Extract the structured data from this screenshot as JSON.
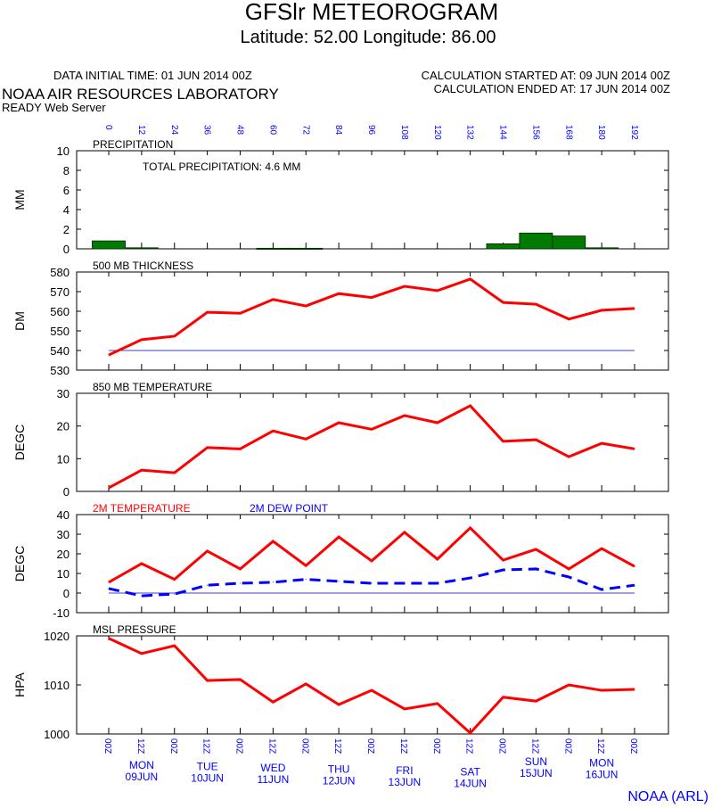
{
  "header": {
    "title": "GFSlr METEOROGRAM",
    "subtitle": "Latitude: 52.00 Longitude:  86.00",
    "initial_time": "DATA INITIAL TIME: 01 JUN 2014 00Z",
    "calc_started": "CALCULATION STARTED AT: 09 JUN 2014 00Z",
    "calc_ended": "CALCULATION ENDED AT: 17 JUN 2014 00Z",
    "org": "NOAA AIR RESOURCES LABORATORY",
    "server": "READY Web Server",
    "footer": "NOAA (ARL)"
  },
  "colors": {
    "accent_blue": "#0000ff",
    "red": "#ff0000",
    "green": "#007a00",
    "ref_line": "#4040c0"
  },
  "chart_data": [
    {
      "type": "bar",
      "title": "PRECIPITATION",
      "annotation": "TOTAL PRECIPITATION:   4.6 MM",
      "ylabel": "MM",
      "ylim": [
        0,
        10
      ],
      "yticks": [
        "0",
        "2",
        "4",
        "6",
        "8",
        "10"
      ],
      "x_hours": [
        0,
        12,
        24,
        36,
        48,
        60,
        72,
        84,
        96,
        108,
        120,
        132,
        144,
        156,
        168,
        180,
        192
      ],
      "x_tick_labels": [
        "0",
        "12",
        "24",
        "36",
        "48",
        "60",
        "72",
        "84",
        "96",
        "108",
        "120",
        "132",
        "144",
        "156",
        "168",
        "180",
        "192"
      ],
      "values": [
        0.8,
        0.1,
        0,
        0,
        0,
        0.05,
        0.05,
        0,
        0,
        0,
        0,
        0,
        0.5,
        1.6,
        1.3,
        0.1,
        0
      ]
    },
    {
      "type": "line",
      "title": "500 MB  THICKNESS",
      "ylabel": "DM",
      "ylim": [
        530,
        580
      ],
      "yticks": [
        "530",
        "540",
        "550",
        "560",
        "570",
        "580"
      ],
      "reference_line": 540,
      "series": [
        {
          "color": "#ff0000",
          "values": [
            537.7,
            545.5,
            547.3,
            559.5,
            559,
            566,
            562.7,
            569,
            567,
            572.7,
            570.5,
            576.4,
            564.5,
            563.6,
            556,
            560.5,
            561.4
          ]
        }
      ]
    },
    {
      "type": "line",
      "title": "850 MB  TEMPERATURE",
      "ylabel": "DEGC",
      "ylim": [
        0,
        30
      ],
      "yticks": [
        "0",
        "10",
        "20",
        "30"
      ],
      "series": [
        {
          "color": "#ff0000",
          "values": [
            1.1,
            6.5,
            5.7,
            13.4,
            13,
            18.5,
            16,
            21,
            19,
            23.2,
            21,
            26.2,
            15.3,
            15.8,
            10.6,
            14.7,
            13
          ]
        }
      ]
    },
    {
      "type": "line",
      "ylabel": "DEGC",
      "ylim": [
        -10,
        40
      ],
      "yticks": [
        "-10",
        "0",
        "10",
        "20",
        "30",
        "40"
      ],
      "reference_line": 0,
      "series": [
        {
          "name": "2M TEMPERATURE",
          "color": "#ff0000",
          "dash": false,
          "values": [
            5.5,
            15,
            7,
            21.4,
            12.3,
            26.4,
            14,
            28.6,
            16.4,
            31,
            17.3,
            33.2,
            16.8,
            22.3,
            12.3,
            22.7,
            13.6
          ]
        },
        {
          "name": "2M   DEW POINT",
          "color": "#0000ff",
          "dash": true,
          "values": [
            2.3,
            -1.4,
            -0.5,
            4,
            5,
            5.5,
            7,
            6,
            5,
            5,
            5,
            7.7,
            11.8,
            12.3,
            8.2,
            1.8,
            4
          ]
        }
      ]
    },
    {
      "type": "line",
      "title": "MSL PRESSURE",
      "ylabel": "HPA",
      "ylim": [
        1000,
        1020
      ],
      "yticks": [
        "1000",
        "1010",
        "1020"
      ],
      "series": [
        {
          "color": "#ff0000",
          "values": [
            1019.5,
            1016.4,
            1018,
            1010.9,
            1011.1,
            1006.5,
            1010.2,
            1006,
            1008.9,
            1005.1,
            1006.2,
            1000.2,
            1007.5,
            1006.7,
            1010,
            1008.9,
            1009.1
          ]
        }
      ]
    }
  ],
  "bottom_axis": {
    "time_labels": [
      "00Z",
      "12Z",
      "00Z",
      "12Z",
      "00Z",
      "12Z",
      "00Z",
      "12Z",
      "00Z",
      "12Z",
      "00Z",
      "12Z",
      "00Z",
      "12Z",
      "00Z",
      "12Z",
      "00Z"
    ],
    "days": [
      {
        "hour": 12,
        "dow": "MON",
        "date": "09JUN"
      },
      {
        "hour": 36,
        "dow": "TUE",
        "date": "10JUN"
      },
      {
        "hour": 60,
        "dow": "WED",
        "date": "11JUN"
      },
      {
        "hour": 84,
        "dow": "THU",
        "date": "12JUN"
      },
      {
        "hour": 108,
        "dow": "FRI",
        "date": "13JUN"
      },
      {
        "hour": 132,
        "dow": "SAT",
        "date": "14JUN"
      },
      {
        "hour": 156,
        "dow": "SUN",
        "date": "15JUN"
      },
      {
        "hour": 180,
        "dow": "MON",
        "date": "16JUN"
      }
    ]
  }
}
